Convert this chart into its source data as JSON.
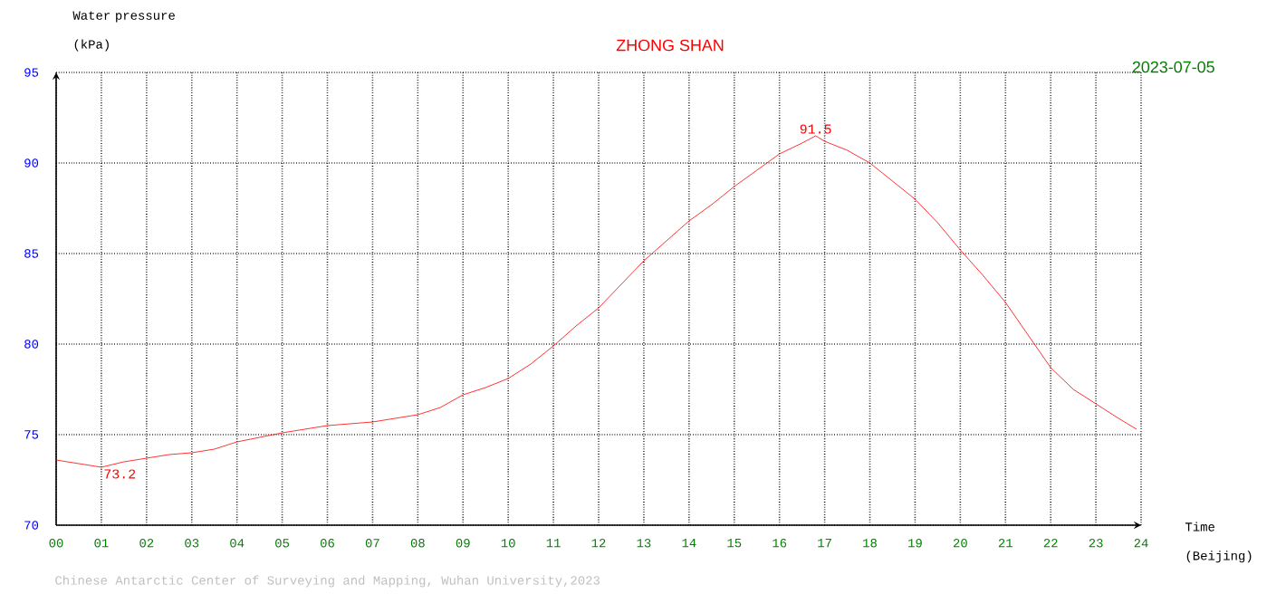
{
  "chart_data": {
    "type": "line",
    "title": "ZHONG SHAN",
    "subtitle": "2023-07-05",
    "xlabel": "Time (Beijing)",
    "ylabel": "Water pressure (kPa)",
    "x": [
      0,
      0.5,
      1,
      1.5,
      2,
      2.5,
      3,
      3.5,
      4,
      5,
      6,
      7,
      8,
      8.5,
      9,
      9.5,
      10,
      10.5,
      11,
      11.5,
      12,
      12.5,
      13,
      13.5,
      14,
      14.5,
      15,
      15.5,
      16,
      16.5,
      16.8,
      17,
      17.5,
      18,
      18.5,
      19,
      19.5,
      20,
      20.5,
      21,
      21.5,
      22,
      22.5,
      23,
      23.5,
      23.9
    ],
    "series": [
      {
        "color": "#ff0000",
        "values": [
          73.6,
          73.4,
          73.2,
          73.5,
          73.7,
          73.9,
          74.0,
          74.2,
          74.6,
          75.1,
          75.5,
          75.7,
          76.1,
          76.5,
          77.2,
          77.6,
          78.1,
          78.9,
          79.9,
          81.0,
          82.0,
          83.3,
          84.6,
          85.7,
          86.8,
          87.7,
          88.7,
          89.6,
          90.5,
          91.1,
          91.5,
          91.2,
          90.7,
          90.0,
          89.0,
          88.0,
          86.7,
          85.2,
          83.8,
          82.3,
          80.5,
          78.7,
          77.5,
          76.7,
          75.9,
          75.3
        ]
      }
    ],
    "xlim": [
      0,
      24
    ],
    "ylim": [
      70,
      95
    ],
    "xticks": [
      {
        "value": 0,
        "label": "00"
      },
      {
        "value": 1,
        "label": "01"
      },
      {
        "value": 2,
        "label": "02"
      },
      {
        "value": 3,
        "label": "03"
      },
      {
        "value": 4,
        "label": "04"
      },
      {
        "value": 5,
        "label": "05"
      },
      {
        "value": 6,
        "label": "06"
      },
      {
        "value": 7,
        "label": "07"
      },
      {
        "value": 8,
        "label": "08"
      },
      {
        "value": 9,
        "label": "09"
      },
      {
        "value": 10,
        "label": "10"
      },
      {
        "value": 11,
        "label": "11"
      },
      {
        "value": 12,
        "label": "12"
      },
      {
        "value": 13,
        "label": "13"
      },
      {
        "value": 14,
        "label": "14"
      },
      {
        "value": 15,
        "label": "15"
      },
      {
        "value": 16,
        "label": "16"
      },
      {
        "value": 17,
        "label": "17"
      },
      {
        "value": 18,
        "label": "18"
      },
      {
        "value": 19,
        "label": "19"
      },
      {
        "value": 20,
        "label": "20"
      },
      {
        "value": 21,
        "label": "21"
      },
      {
        "value": 22,
        "label": "22"
      },
      {
        "value": 23,
        "label": "23"
      },
      {
        "value": 24,
        "label": "24"
      }
    ],
    "yticks": [
      70,
      75,
      80,
      85,
      90,
      95
    ],
    "grid": true,
    "line_style": "solid",
    "annotations": [
      {
        "text": "91.5",
        "x": 16.8,
        "y": 91.5
      },
      {
        "text": "73.2",
        "x": 1,
        "y": 73.2
      },
      "Chinese Antarctic Center of Surveying and Mapping, Wuhan University,2023"
    ]
  }
}
